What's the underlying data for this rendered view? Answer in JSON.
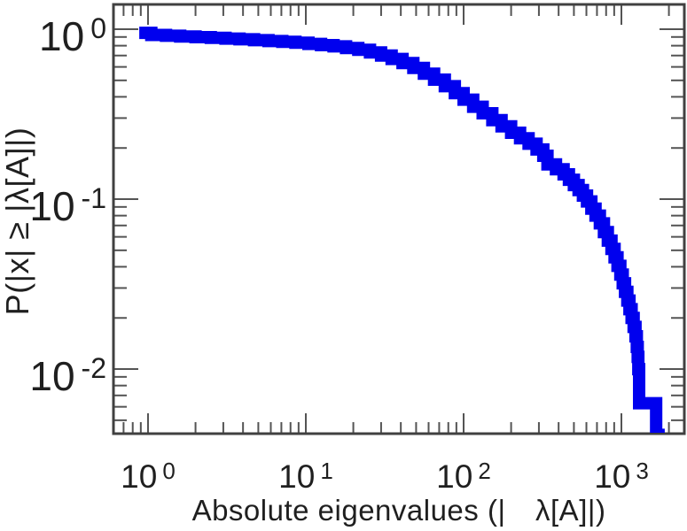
{
  "chart_data": {
    "type": "line",
    "style": "step-after-ccdf",
    "title": "",
    "xlabel": "Absolute eigenvalues (| λ[A]|)",
    "ylabel": "P(|x| ≥ |λ[A]|)",
    "x_scale": "log",
    "y_scale": "log",
    "xlim": [
      0.604,
      2505
    ],
    "ylim": [
      0.00417,
      1.399
    ],
    "grid": false,
    "legend": null,
    "line_color": "#0000ee",
    "line_width": 14,
    "axis_color": "#404040",
    "tick_color": "#545454",
    "x_major_ticks": [
      {
        "base": "10",
        "exp": "0",
        "value": 1
      },
      {
        "base": "10",
        "exp": "1",
        "value": 10
      },
      {
        "base": "10",
        "exp": "2",
        "value": 100
      },
      {
        "base": "10",
        "exp": "3",
        "value": 1000
      }
    ],
    "x_minor_ticks": [
      0.7,
      0.8,
      0.9,
      2,
      3,
      4,
      5,
      6,
      7,
      8,
      9,
      20,
      30,
      40,
      50,
      60,
      70,
      80,
      90,
      200,
      300,
      400,
      500,
      600,
      700,
      800,
      900,
      2000
    ],
    "y_major_ticks": [
      {
        "base": "10",
        "exp": "0",
        "value": 1
      },
      {
        "base": "10",
        "exp": "-1",
        "value": 0.1
      },
      {
        "base": "10",
        "exp": "-2",
        "value": 0.01
      }
    ],
    "y_minor_ticks": [
      0.9,
      0.8,
      0.7,
      0.6,
      0.5,
      0.4,
      0.3,
      0.2,
      0.09,
      0.08,
      0.07,
      0.06,
      0.05,
      0.04,
      0.03,
      0.02,
      0.009,
      0.008,
      0.007,
      0.006,
      0.005
    ],
    "points": [
      [
        0.88,
        0.952
      ],
      [
        1.05,
        0.925
      ],
      [
        1.3,
        0.915
      ],
      [
        1.6,
        0.906
      ],
      [
        2.0,
        0.898
      ],
      [
        2.5,
        0.89
      ],
      [
        3.1,
        0.881
      ],
      [
        3.8,
        0.872
      ],
      [
        4.7,
        0.862
      ],
      [
        5.8,
        0.852
      ],
      [
        7.1,
        0.842
      ],
      [
        8.6,
        0.832
      ],
      [
        10.4,
        0.82
      ],
      [
        12.5,
        0.806
      ],
      [
        15,
        0.792
      ],
      [
        18,
        0.776
      ],
      [
        21.5,
        0.756
      ],
      [
        25.5,
        0.73
      ],
      [
        30,
        0.7
      ],
      [
        35,
        0.668
      ],
      [
        41,
        0.632
      ],
      [
        48,
        0.592
      ],
      [
        56,
        0.548
      ],
      [
        65,
        0.505
      ],
      [
        76,
        0.462
      ],
      [
        88,
        0.42
      ],
      [
        100,
        0.385
      ],
      [
        115,
        0.35
      ],
      [
        132,
        0.32
      ],
      [
        152,
        0.292
      ],
      [
        174,
        0.268
      ],
      [
        200,
        0.246
      ],
      [
        228,
        0.228
      ],
      [
        258,
        0.212
      ],
      [
        290,
        0.196
      ],
      [
        320,
        0.18
      ],
      [
        340,
        0.16
      ],
      [
        385,
        0.15
      ],
      [
        430,
        0.14
      ],
      [
        465,
        0.13
      ],
      [
        500,
        0.121
      ],
      [
        535,
        0.113
      ],
      [
        570,
        0.105
      ],
      [
        605,
        0.097
      ],
      [
        645,
        0.088
      ],
      [
        685,
        0.08
      ],
      [
        730,
        0.072
      ],
      [
        775,
        0.064
      ],
      [
        820,
        0.057
      ],
      [
        865,
        0.051
      ],
      [
        905,
        0.0455
      ],
      [
        945,
        0.0405
      ],
      [
        985,
        0.036
      ],
      [
        1020,
        0.032
      ],
      [
        1055,
        0.0285
      ],
      [
        1090,
        0.0253
      ],
      [
        1125,
        0.0225
      ],
      [
        1160,
        0.02
      ],
      [
        1195,
        0.0177
      ],
      [
        1228,
        0.0156
      ],
      [
        1252,
        0.0135
      ],
      [
        1268,
        0.0118
      ],
      [
        1280,
        0.01
      ],
      [
        1295,
        0.0063
      ],
      [
        1660,
        0.0041
      ],
      [
        1720,
        0.00405
      ]
    ]
  }
}
